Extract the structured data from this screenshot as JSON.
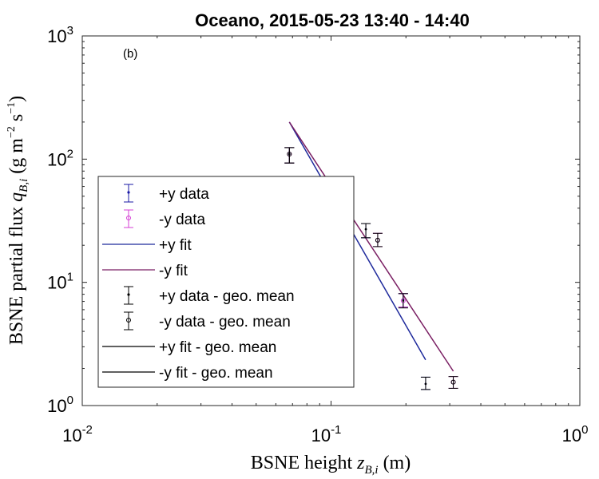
{
  "chart_data": {
    "type": "scatter",
    "title": "Oceano, 2015-05-23 13:40 - 14:40",
    "panel_label": "(b)",
    "xlabel": "BSNE height z_B,i (m)",
    "ylabel": "BSNE partial flux q_B,i (g m^-2 s^-1)",
    "xscale": "log",
    "yscale": "log",
    "xlim": [
      0.01,
      1
    ],
    "ylim": [
      1,
      1000
    ],
    "x_ticks": [
      {
        "value": 0.01,
        "base": "10",
        "exp": "-2"
      },
      {
        "value": 0.1,
        "base": "10",
        "exp": "-1"
      },
      {
        "value": 1,
        "base": "10",
        "exp": "0"
      }
    ],
    "y_ticks": [
      {
        "value": 1,
        "base": "10",
        "exp": "0"
      },
      {
        "value": 10,
        "base": "10",
        "exp": "1"
      },
      {
        "value": 100,
        "base": "10",
        "exp": "2"
      },
      {
        "value": 1000,
        "base": "10",
        "exp": "3"
      }
    ],
    "legend_position": "left",
    "colors": {
      "plus_y": "#1a1aa6",
      "minus_y": "#d43fd4",
      "plus_y_fit": "#1f2a9c",
      "minus_y_fit": "#7a1f63",
      "geo_mean": "#000000"
    },
    "series": [
      {
        "name": "+y data",
        "kind": "points",
        "marker": "dot",
        "color_key": "plus_y",
        "points": [
          {
            "x": 0.068,
            "y": 110,
            "lo": 93,
            "hi": 124
          },
          {
            "x": 0.138,
            "y": 27,
            "lo": 23,
            "hi": 30
          },
          {
            "x": 0.195,
            "y": 7.2,
            "lo": 6.3,
            "hi": 8.1
          },
          {
            "x": 0.24,
            "y": 1.5,
            "lo": 1.35,
            "hi": 1.7
          }
        ]
      },
      {
        "name": "-y data",
        "kind": "points",
        "marker": "circle",
        "color_key": "minus_y",
        "points": [
          {
            "x": 0.068,
            "y": 110,
            "lo": 93,
            "hi": 124
          },
          {
            "x": 0.154,
            "y": 22,
            "lo": 19.5,
            "hi": 25
          },
          {
            "x": 0.195,
            "y": 7.1,
            "lo": 6.3,
            "hi": 8.1
          },
          {
            "x": 0.31,
            "y": 1.55,
            "lo": 1.38,
            "hi": 1.72
          }
        ]
      },
      {
        "name": "+y fit",
        "kind": "line",
        "color_key": "plus_y_fit",
        "points": [
          {
            "x": 0.068,
            "y": 200
          },
          {
            "x": 0.24,
            "y": 2.35
          }
        ]
      },
      {
        "name": "-y fit",
        "kind": "line",
        "color_key": "minus_y_fit",
        "points": [
          {
            "x": 0.068,
            "y": 200
          },
          {
            "x": 0.31,
            "y": 1.9
          }
        ]
      },
      {
        "name": "+y data - geo. mean",
        "kind": "points",
        "marker": "dot",
        "color_key": "geo_mean",
        "points": [
          {
            "x": 0.068,
            "y": 110,
            "lo": 93,
            "hi": 124
          },
          {
            "x": 0.138,
            "y": 27,
            "lo": 23,
            "hi": 30
          },
          {
            "x": 0.195,
            "y": 7.1,
            "lo": 6.2,
            "hi": 8.1
          },
          {
            "x": 0.24,
            "y": 1.5,
            "lo": 1.35,
            "hi": 1.7
          }
        ]
      },
      {
        "name": "-y data - geo. mean",
        "kind": "points",
        "marker": "circle",
        "color_key": "geo_mean",
        "points": [
          {
            "x": 0.068,
            "y": 110,
            "lo": 93,
            "hi": 124
          },
          {
            "x": 0.154,
            "y": 22,
            "lo": 19.5,
            "hi": 25
          },
          {
            "x": 0.31,
            "y": 1.55,
            "lo": 1.38,
            "hi": 1.72
          }
        ]
      },
      {
        "name": "+y fit - geo. mean",
        "kind": "line",
        "color_key": "geo_mean",
        "points": []
      },
      {
        "name": "-y fit - geo. mean",
        "kind": "line",
        "color_key": "geo_mean",
        "points": []
      }
    ]
  }
}
